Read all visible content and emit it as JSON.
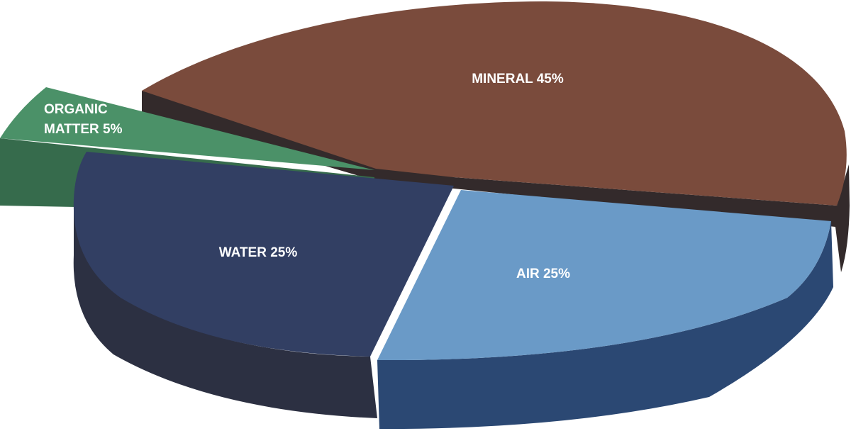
{
  "chart_data": {
    "type": "pie",
    "style": "3d-exploded",
    "title": "",
    "slices": [
      {
        "name": "MINERAL",
        "value": 45,
        "label": "MINERAL 45%",
        "color": "#7a4b3c",
        "side_color": "#332a2b"
      },
      {
        "name": "AIR",
        "value": 25,
        "label": "AIR 25%",
        "color": "#6a9ac7",
        "side_color": "#2b4873"
      },
      {
        "name": "WATER",
        "value": 25,
        "label": "WATER 25%",
        "color": "#323f63",
        "side_color": "#2c3042"
      },
      {
        "name": "ORGANIC MATTER",
        "value": 5,
        "label_lines": [
          "ORGANIC",
          "MATTER 5%"
        ],
        "color": "#4b9168",
        "side_color": "#366b4c"
      }
    ]
  }
}
